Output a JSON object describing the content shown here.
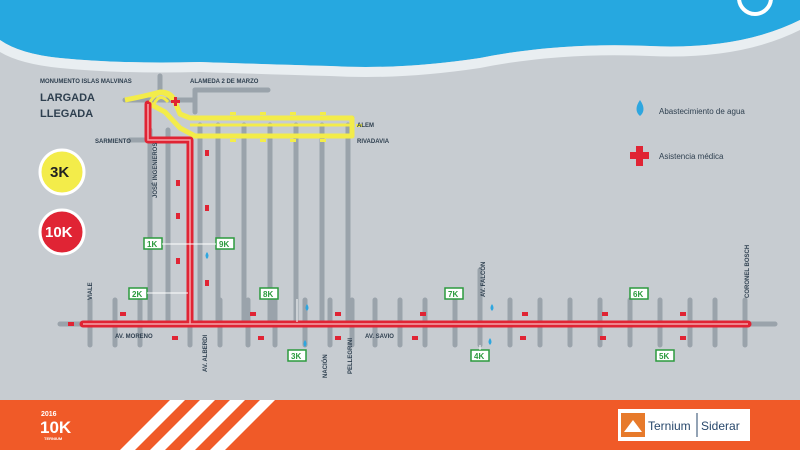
{
  "colors": {
    "sea": "#26a8e0",
    "land": "#c7ccd1",
    "coast": "#e9eef1",
    "street": "#9aa3ab",
    "route_10k": "#e02434",
    "route_3k": "#f3ec4a",
    "marker_green": "#2b9a3d",
    "water_drop": "#2ea6df",
    "medical_cross": "#e02434",
    "footer": "#f05a28",
    "text": "#2e3f4f"
  },
  "map": {
    "start_finish": [
      "LARGADA",
      "LLEGADA"
    ],
    "streets": {
      "monumento": "MONUMENTO ISLAS MALVINAS",
      "alameda": "ALAMEDA 2 DE MARZO",
      "alem": "ALEM",
      "rivadavia": "RIVADAVIA",
      "sarmiento": "SARMIENTO",
      "jose_ingenieros": "JOSÉ INGENIEROS",
      "viale": "VIALE",
      "av_moreno": "AV. MORENO",
      "av_alberdi": "AV. ALBERDI",
      "nacion": "NACIÓN",
      "pellegrini": "PELLEGRINI",
      "av_savio": "AV. SAVIO",
      "av_falcon": "AV. FALCÓN",
      "coronel_bosch": "CORONEL BOSCH"
    },
    "km_markers": [
      "1K",
      "9K",
      "2K",
      "8K",
      "3K",
      "7K",
      "4K",
      "6K",
      "5K"
    ]
  },
  "legend": {
    "water": "Abastecimiento de agua",
    "medical": "Asistencia médica"
  },
  "badges": {
    "three_k": "3K",
    "ten_k": "10K"
  },
  "footer": {
    "year": "2016",
    "event": "10K",
    "sponsor_small": "TERNIUM",
    "brand_left": "Ternium",
    "brand_right": "Siderar"
  }
}
